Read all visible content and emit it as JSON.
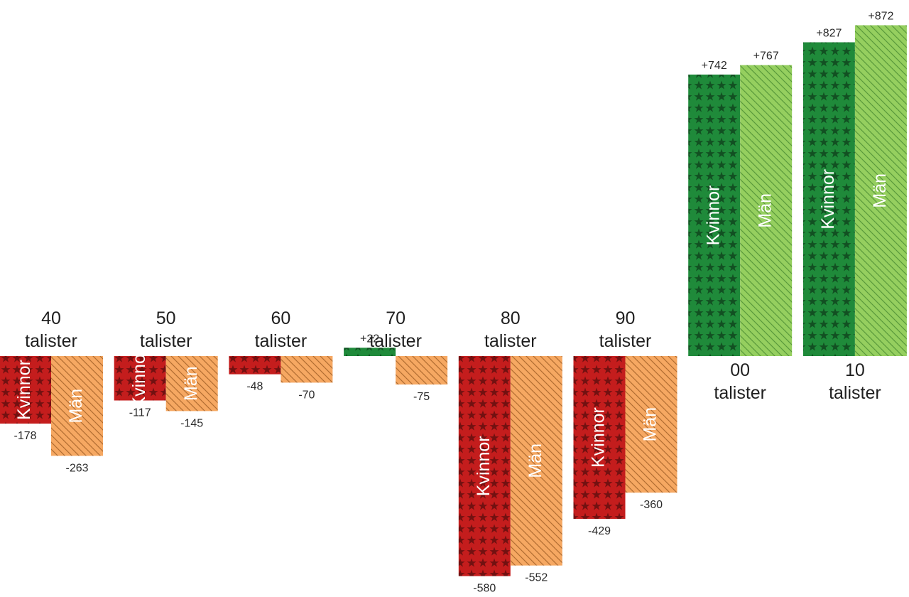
{
  "colors": {
    "women_negative": "#c41d1d",
    "men_negative": "#f6a862",
    "women_positive": "#1f8a3a",
    "men_positive": "#95cf5f",
    "women_pattern": "stars",
    "men_pattern": "diagonal-hatch"
  },
  "chart_data": {
    "type": "bar",
    "categories": [
      [
        "40",
        "talister"
      ],
      [
        "50",
        "talister"
      ],
      [
        "60",
        "talister"
      ],
      [
        "70",
        "talister"
      ],
      [
        "80",
        "talister"
      ],
      [
        "90",
        "talister"
      ],
      [
        "00",
        "talister"
      ],
      [
        "10",
        "talister"
      ]
    ],
    "series": [
      {
        "name": "Kvinnor",
        "values": [
          -178,
          -117,
          -48,
          22,
          -580,
          -429,
          742,
          827
        ],
        "value_labels": [
          "-178",
          "-117",
          "-48",
          "+22",
          "-580",
          "-429",
          "+742",
          "+827"
        ]
      },
      {
        "name": "Män",
        "values": [
          -263,
          -145,
          -70,
          -75,
          -552,
          -360,
          767,
          872
        ],
        "value_labels": [
          "-263",
          "-145",
          "-70",
          "-75",
          "-552",
          "-360",
          "+767",
          "+872"
        ]
      }
    ],
    "baseline": 0,
    "legend": "none",
    "grid": false
  }
}
